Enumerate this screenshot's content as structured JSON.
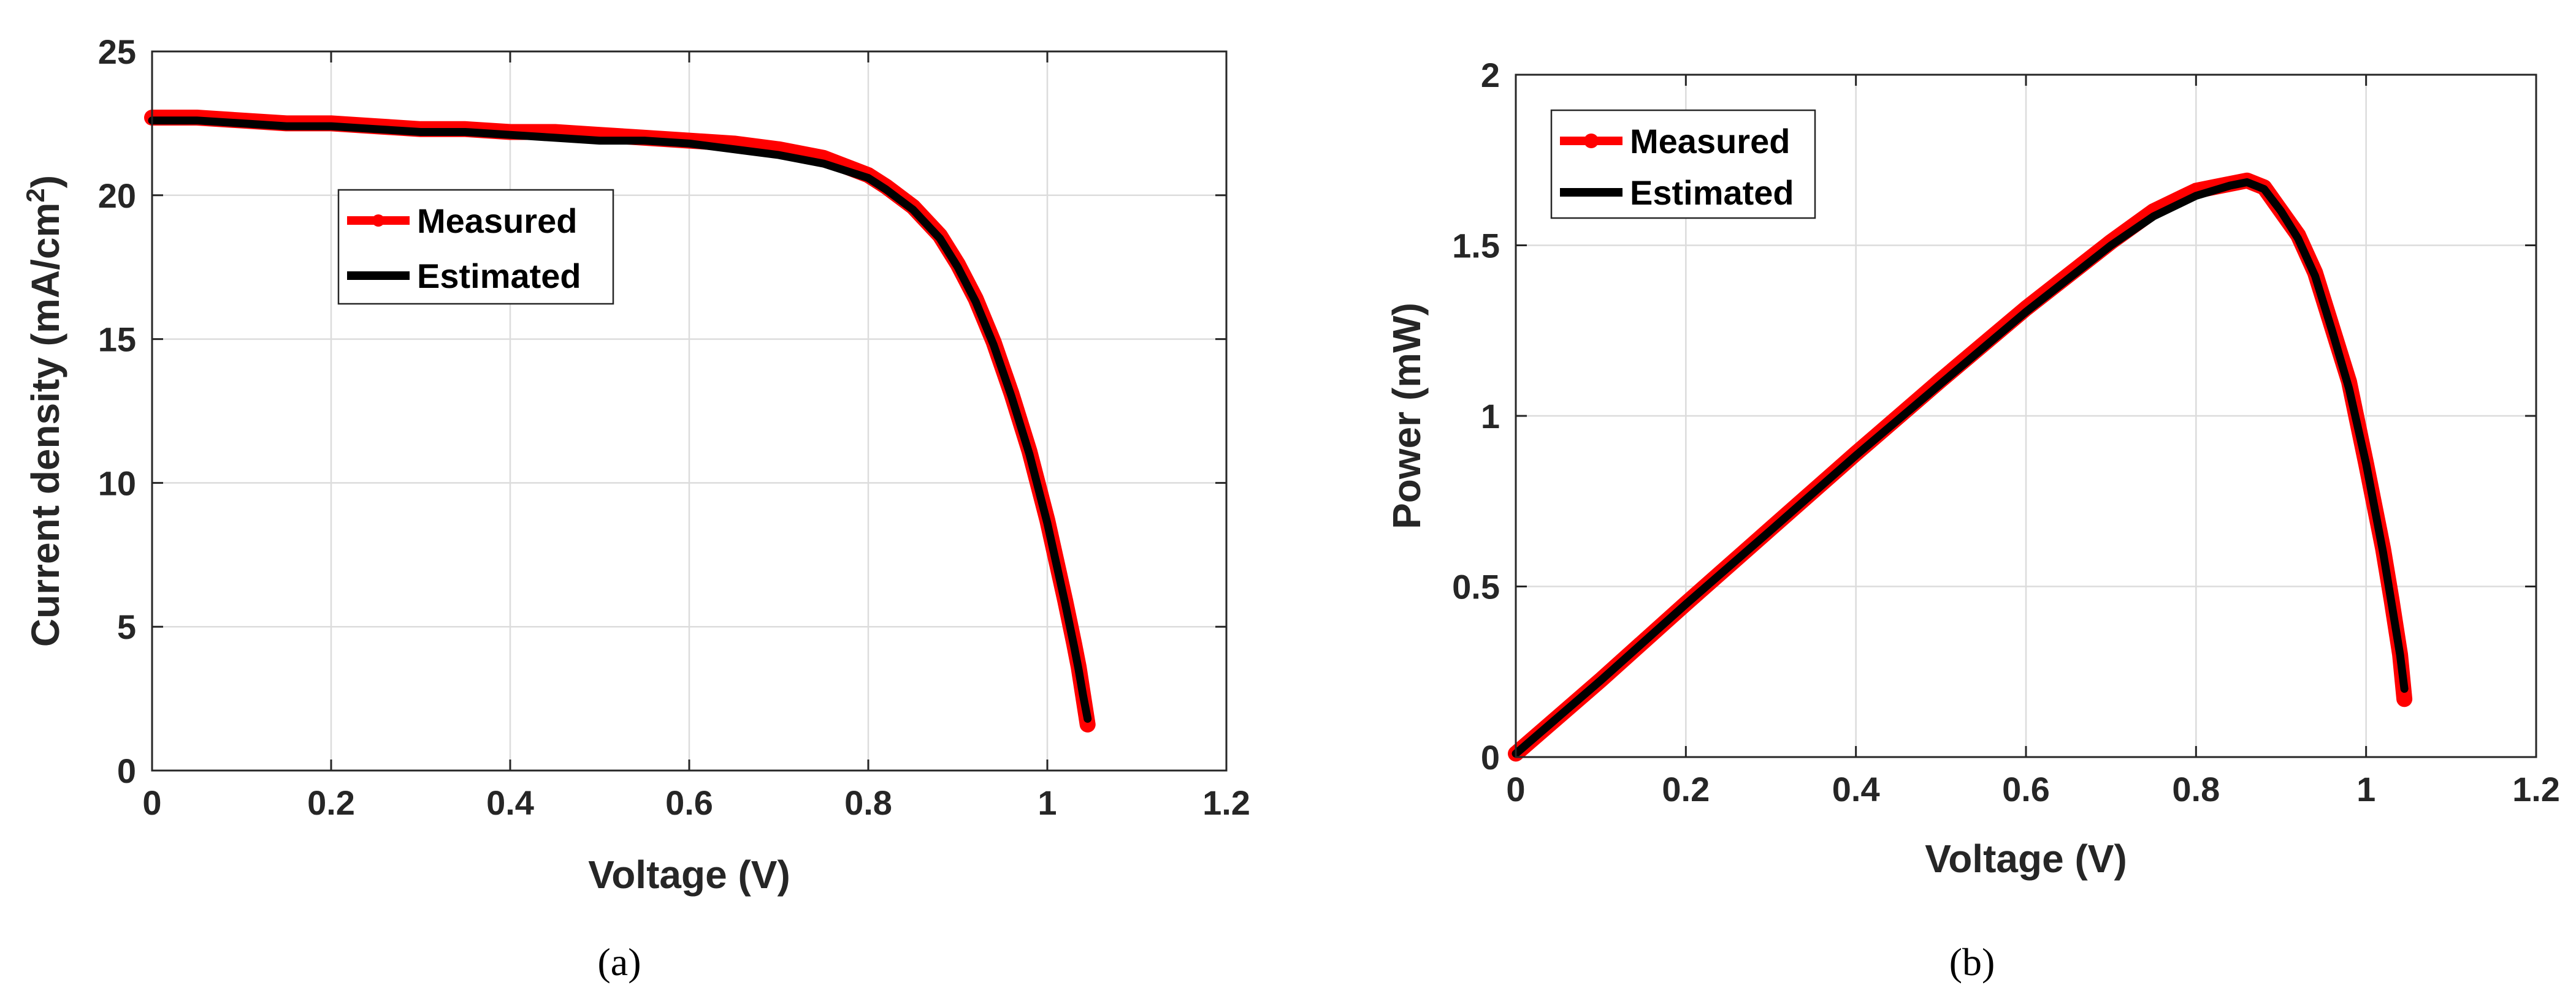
{
  "chart_data": [
    {
      "id": "a",
      "type": "line",
      "caption": "(a)",
      "xlabel": "Voltage (V)",
      "ylabel_main": "Current density (mA/cm",
      "ylabel_sup": "2",
      "ylabel_end": ")",
      "xlim": [
        0,
        1.2
      ],
      "ylim": [
        0,
        25
      ],
      "xticks": [
        0,
        0.2,
        0.4,
        0.6,
        0.8,
        1,
        1.2
      ],
      "xtick_labels": [
        "0",
        "0.2",
        "0.4",
        "0.6",
        "0.8",
        "1",
        "1.2"
      ],
      "yticks": [
        0,
        5,
        10,
        15,
        20,
        25
      ],
      "ytick_labels": [
        "0",
        "5",
        "10",
        "15",
        "20",
        "25"
      ],
      "legend_position": "upper-center-left",
      "series": [
        {
          "name": "Measured",
          "color": "#ff0000",
          "marker": "circle",
          "x": [
            0,
            0.05,
            0.1,
            0.15,
            0.2,
            0.25,
            0.3,
            0.35,
            0.4,
            0.45,
            0.5,
            0.55,
            0.6,
            0.65,
            0.7,
            0.75,
            0.8,
            0.82,
            0.85,
            0.88,
            0.9,
            0.92,
            0.94,
            0.96,
            0.98,
            1.0,
            1.01,
            1.02,
            1.03,
            1.035,
            1.04,
            1.045
          ],
          "y": [
            22.7,
            22.7,
            22.6,
            22.5,
            22.5,
            22.4,
            22.3,
            22.3,
            22.2,
            22.2,
            22.1,
            22.0,
            21.9,
            21.8,
            21.6,
            21.3,
            20.7,
            20.3,
            19.6,
            18.6,
            17.6,
            16.4,
            14.9,
            13.1,
            11.1,
            8.7,
            7.3,
            5.9,
            4.4,
            3.6,
            2.6,
            1.6
          ]
        },
        {
          "name": "Estimated",
          "color": "#000000",
          "marker": "none",
          "x": [
            0,
            0.05,
            0.1,
            0.15,
            0.2,
            0.25,
            0.3,
            0.35,
            0.4,
            0.45,
            0.5,
            0.55,
            0.6,
            0.65,
            0.7,
            0.75,
            0.8,
            0.82,
            0.85,
            0.88,
            0.9,
            0.92,
            0.94,
            0.96,
            0.98,
            1.0,
            1.01,
            1.02,
            1.03,
            1.035,
            1.04,
            1.045
          ],
          "y": [
            22.6,
            22.6,
            22.5,
            22.4,
            22.4,
            22.3,
            22.2,
            22.2,
            22.1,
            22.0,
            21.9,
            21.9,
            21.8,
            21.6,
            21.4,
            21.1,
            20.6,
            20.2,
            19.5,
            18.5,
            17.5,
            16.3,
            14.8,
            13.0,
            11.0,
            8.6,
            7.2,
            5.8,
            4.3,
            3.5,
            2.6,
            1.8
          ]
        }
      ]
    },
    {
      "id": "b",
      "type": "line",
      "caption": "(b)",
      "xlabel": "Voltage (V)",
      "ylabel_main": "Power (mW)",
      "ylabel_sup": "",
      "ylabel_end": "",
      "xlim": [
        0,
        1.2
      ],
      "ylim": [
        0,
        2
      ],
      "xticks": [
        0,
        0.2,
        0.4,
        0.6,
        0.8,
        1,
        1.2
      ],
      "xtick_labels": [
        "0",
        "0.2",
        "0.4",
        "0.6",
        "0.8",
        "1",
        "1.2"
      ],
      "yticks": [
        0,
        0.5,
        1,
        1.5,
        2
      ],
      "ytick_labels": [
        "0",
        "0.5",
        "1",
        "1.5",
        "2"
      ],
      "legend_position": "top-left",
      "series": [
        {
          "name": "Measured",
          "color": "#ff0000",
          "marker": "circle",
          "x": [
            0,
            0.1,
            0.2,
            0.3,
            0.4,
            0.5,
            0.6,
            0.7,
            0.75,
            0.8,
            0.82,
            0.84,
            0.86,
            0.88,
            0.9,
            0.92,
            0.94,
            0.96,
            0.98,
            1.0,
            1.02,
            1.03,
            1.04,
            1.045
          ],
          "y": [
            0.01,
            0.226,
            0.45,
            0.67,
            0.89,
            1.105,
            1.315,
            1.51,
            1.6,
            1.66,
            1.67,
            1.68,
            1.69,
            1.67,
            1.6,
            1.53,
            1.42,
            1.26,
            1.1,
            0.86,
            0.61,
            0.46,
            0.3,
            0.17
          ]
        },
        {
          "name": "Estimated",
          "color": "#000000",
          "marker": "none",
          "x": [
            0,
            0.1,
            0.2,
            0.3,
            0.4,
            0.5,
            0.6,
            0.7,
            0.75,
            0.8,
            0.82,
            0.84,
            0.86,
            0.88,
            0.9,
            0.92,
            0.94,
            0.96,
            0.98,
            1.0,
            1.02,
            1.03,
            1.04,
            1.045
          ],
          "y": [
            0.01,
            0.225,
            0.448,
            0.665,
            0.884,
            1.095,
            1.305,
            1.5,
            1.585,
            1.645,
            1.66,
            1.675,
            1.685,
            1.665,
            1.6,
            1.52,
            1.41,
            1.25,
            1.08,
            0.86,
            0.6,
            0.45,
            0.3,
            0.2
          ]
        }
      ]
    }
  ]
}
